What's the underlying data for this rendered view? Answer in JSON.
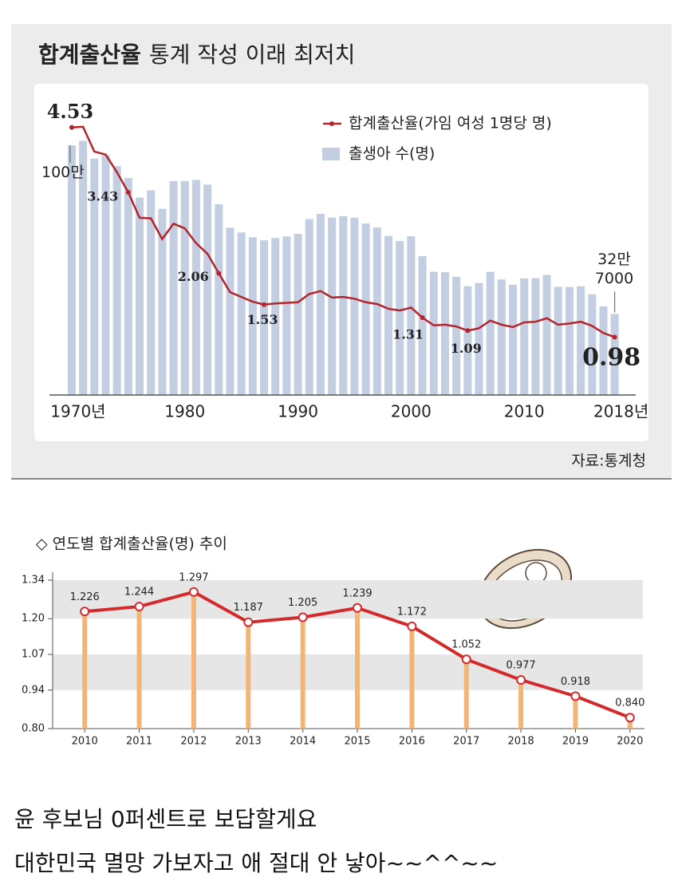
{
  "chart_data": [
    {
      "type": "combo",
      "title": "합계출산율",
      "subtitle": "통계 작성 이래 최저치",
      "source": "자료:통계청",
      "x": [
        1970,
        1971,
        1972,
        1973,
        1974,
        1975,
        1976,
        1977,
        1978,
        1979,
        1980,
        1981,
        1982,
        1983,
        1984,
        1985,
        1986,
        1987,
        1988,
        1989,
        1990,
        1991,
        1992,
        1993,
        1994,
        1995,
        1996,
        1997,
        1998,
        1999,
        2000,
        2001,
        2002,
        2003,
        2004,
        2005,
        2006,
        2007,
        2008,
        2009,
        2010,
        2011,
        2012,
        2013,
        2014,
        2015,
        2016,
        2017,
        2018
      ],
      "xlim": [
        1969.3,
        2018.8
      ],
      "xticks": [
        {
          "value": 1970,
          "label": "1970년"
        },
        1980,
        1990,
        2000,
        2010,
        {
          "value": 2018,
          "label": "2018년"
        }
      ],
      "ylim": [
        0,
        1110000
      ],
      "y2lim": [
        0,
        4.66
      ],
      "series": [
        {
          "name": "합계출산율(가임 여성 1명당 명)",
          "type": "line",
          "axis": "y2",
          "color": "#b3242b",
          "values": [
            4.53,
            4.54,
            4.12,
            4.07,
            3.77,
            3.43,
            3.0,
            2.99,
            2.64,
            2.9,
            2.82,
            2.57,
            2.39,
            2.06,
            1.74,
            1.66,
            1.58,
            1.53,
            1.55,
            1.56,
            1.57,
            1.71,
            1.76,
            1.65,
            1.66,
            1.63,
            1.57,
            1.54,
            1.46,
            1.43,
            1.48,
            1.31,
            1.18,
            1.19,
            1.16,
            1.09,
            1.13,
            1.26,
            1.19,
            1.15,
            1.23,
            1.24,
            1.3,
            1.19,
            1.21,
            1.24,
            1.17,
            1.05,
            0.98
          ],
          "value_labels": [
            "4.53",
            null,
            null,
            null,
            null,
            "3.43",
            null,
            null,
            null,
            null,
            null,
            null,
            null,
            "2.06",
            null,
            null,
            null,
            "1.53",
            null,
            null,
            null,
            null,
            null,
            null,
            null,
            null,
            null,
            null,
            null,
            null,
            null,
            "1.31",
            null,
            null,
            null,
            "1.09",
            null,
            null,
            null,
            null,
            null,
            null,
            null,
            null,
            null,
            null,
            null,
            null,
            "0.98"
          ]
        },
        {
          "name": "출생아 수(명)",
          "type": "bar",
          "color": "#c4cee2",
          "values": [
            1006645,
            1024773,
            952780,
            967228,
            922823,
            874869,
            796331,
            825339,
            750728,
            862669,
            862835,
            867409,
            848312,
            769155,
            674793,
            655489,
            636019,
            623831,
            633092,
            639431,
            649738,
            709275,
            730678,
            715826,
            721185,
            715020,
            691226,
            675394,
            641594,
            620668,
            640089,
            559934,
            496911,
            495036,
            476958,
            438707,
            451759,
            496822,
            465892,
            444849,
            470171,
            471265,
            484550,
            436455,
            435435,
            438420,
            406243,
            357771,
            326822
          ],
          "value_labels": [
            "100만",
            null,
            null,
            null,
            null,
            null,
            null,
            null,
            null,
            null,
            null,
            null,
            null,
            null,
            null,
            null,
            null,
            null,
            null,
            null,
            null,
            null,
            null,
            null,
            null,
            null,
            null,
            null,
            null,
            null,
            null,
            null,
            null,
            null,
            null,
            null,
            null,
            null,
            null,
            null,
            null,
            null,
            null,
            null,
            null,
            null,
            null,
            null,
            "32만 7000"
          ]
        }
      ]
    },
    {
      "type": "line",
      "title": "◇ 연도별 합계출산율(명) 추이",
      "categories": [
        "2010",
        "2011",
        "2012",
        "2013",
        "2014",
        "2015",
        "2016",
        "2017",
        "2018",
        "2019",
        "2020"
      ],
      "values": [
        1.226,
        1.244,
        1.297,
        1.187,
        1.205,
        1.239,
        1.172,
        1.052,
        0.977,
        0.918,
        0.84
      ],
      "value_labels": [
        "1.226",
        "1.244",
        "1.297",
        "1.187",
        "1.205",
        "1.239",
        "1.172",
        "1.052",
        "0.977",
        "0.918",
        "0.840"
      ],
      "ylim": [
        0.8,
        1.34
      ],
      "yticks": [
        {
          "value": 0.8,
          "label": "0.80"
        },
        0.94,
        1.07,
        {
          "value": 1.2,
          "label": "1.20"
        },
        1.34
      ],
      "grid": "bands",
      "color": "#d42a2c",
      "stem_color": "#f2b577",
      "band_color": "#e6e6e6"
    }
  ],
  "caption": {
    "lines": [
      "윤 후보님 0퍼센트로 보답할게요",
      "대한민국 멸망 가보자고 애 절대 안 낳아~~^^~~"
    ]
  }
}
